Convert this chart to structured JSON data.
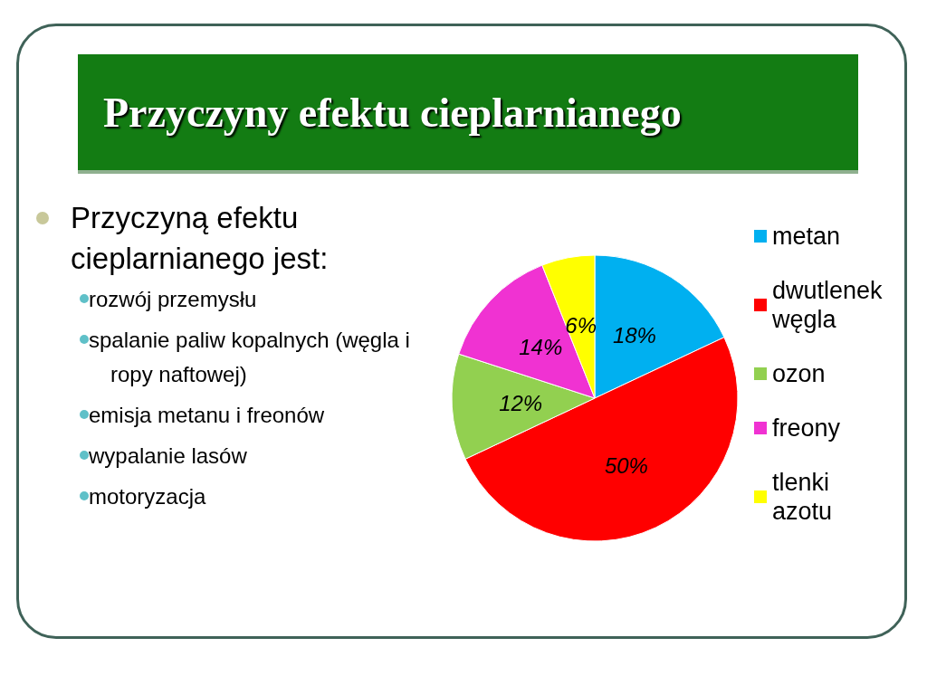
{
  "chart_data": {
    "type": "pie",
    "title": "Przyczyny efektu cieplarnianego",
    "categories": [
      "metan",
      "dwutlenek węgla",
      "ozon",
      "freony",
      "tlenki azotu"
    ],
    "values": [
      18,
      50,
      12,
      14,
      6
    ],
    "colors": [
      "#00b0f0",
      "#ff0000",
      "#92d050",
      "#f032d2",
      "#ffff00"
    ],
    "value_labels": [
      "18%",
      "50%",
      "12%",
      "14%",
      "6%"
    ],
    "legend": "right",
    "annotations": [
      "Przyczyną efektu cieplarnianego jest:",
      "rozwój przemysłu",
      "spalanie paliw kopalnych (węgla i ropy naftowej)",
      "emisja metanu i freonów",
      "wypalanie lasów",
      "motoryzacja"
    ]
  }
}
